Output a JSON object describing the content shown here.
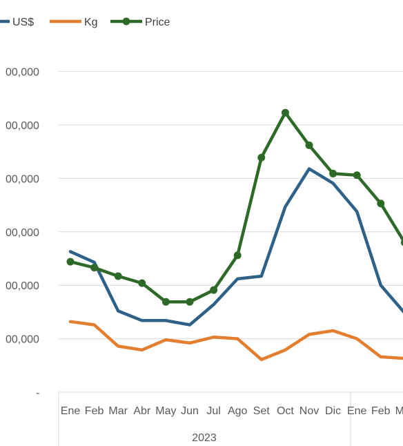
{
  "chart_data": {
    "type": "line",
    "categories": [
      "Ene",
      "Feb",
      "Mar",
      "Abr",
      "May",
      "Jun",
      "Jul",
      "Ago",
      "Set",
      "Oct",
      "Nov",
      "Dic",
      "Ene",
      "Feb",
      "Mar"
    ],
    "group_label": "2023",
    "y_tick_labels": [
      "-",
      "00,000",
      "00,000",
      "00,000",
      "00,000",
      "00,000",
      "00,000"
    ],
    "ylim": [
      0,
      6
    ],
    "grid": true,
    "legend_position": "top-left",
    "series": [
      {
        "name": "US$",
        "color": "#2e6188",
        "markers": false,
        "values": [
          2.63,
          2.43,
          1.52,
          1.34,
          1.34,
          1.26,
          1.64,
          2.12,
          2.17,
          3.47,
          4.18,
          3.91,
          3.38,
          2.0,
          1.48
        ]
      },
      {
        "name": "Kg",
        "color": "#e37e2f",
        "markers": false,
        "values": [
          1.32,
          1.26,
          0.86,
          0.79,
          0.98,
          0.92,
          1.03,
          1.0,
          0.61,
          0.79,
          1.08,
          1.15,
          1.0,
          0.66,
          0.63
        ]
      },
      {
        "name": "Price",
        "color": "#2e6a27",
        "markers": true,
        "values": [
          2.44,
          2.33,
          2.17,
          2.04,
          1.69,
          1.69,
          1.91,
          2.56,
          4.39,
          5.23,
          4.62,
          4.09,
          4.06,
          3.53,
          2.8
        ]
      }
    ]
  }
}
